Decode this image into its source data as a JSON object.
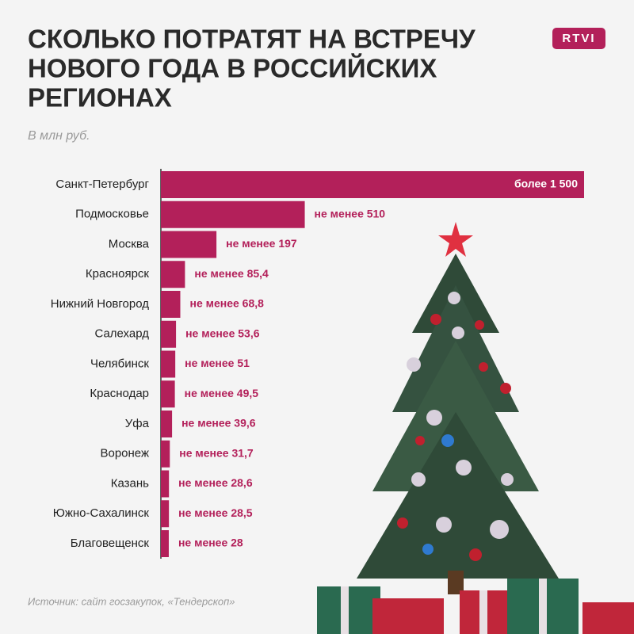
{
  "logo": "RTVI",
  "chart_data": {
    "type": "bar",
    "orientation": "horizontal",
    "title": [
      "СКОЛЬКО ПОТРАТЯТ НА ВСТРЕЧУ",
      "НОВОГО ГОДА В РОССИЙСКИХ",
      "РЕГИОНАХ"
    ],
    "subtitle": "В млн руб.",
    "source": "Источник: сайт госзакупок, «Тендерскоп»",
    "categories": [
      "Санкт-Петербург",
      "Подмосковье",
      "Москва",
      "Красноярск",
      "Нижний Новгород",
      "Салехард",
      "Челябинск",
      "Краснодар",
      "Уфа",
      "Воронеж",
      "Казань",
      "Южно-Сахалинск",
      "Благовещенск"
    ],
    "values": [
      1500,
      510,
      197,
      85.4,
      68.8,
      53.6,
      51,
      49.5,
      39.6,
      31.7,
      28.6,
      28.5,
      28
    ],
    "value_labels": [
      "более 1 500",
      "не менее 510",
      "не менее 197",
      "не менее 85,4",
      "не менее 68,8",
      "не менее 53,6",
      "не менее 51",
      "не менее 49,5",
      "не менее 39,6",
      "не менее 31,7",
      "не менее 28,6",
      "не менее 28,5",
      "не менее 28"
    ],
    "color": "#b3205a",
    "xlim": [
      0,
      1500
    ]
  }
}
